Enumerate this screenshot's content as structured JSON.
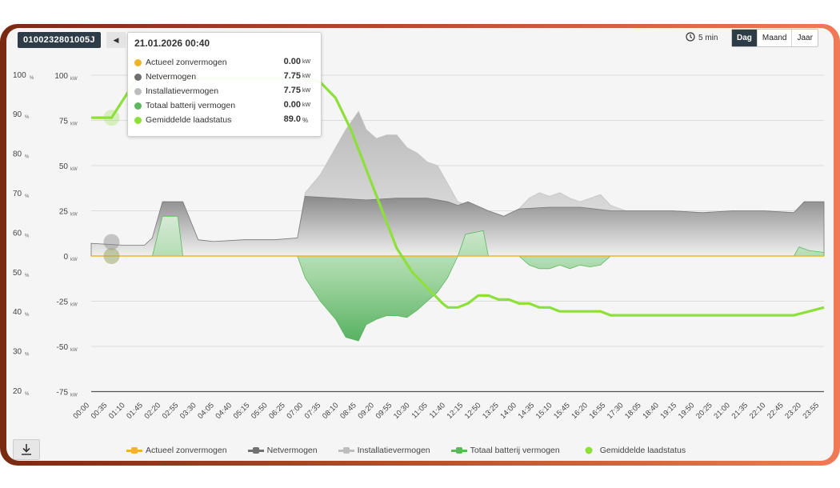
{
  "toolbar": {
    "meter_id": "0100232801005J",
    "interval_label": "5 min",
    "periods": [
      "Dag",
      "Maand",
      "Jaar"
    ],
    "active_period": "Dag"
  },
  "tooltip": {
    "title": "21.01.2026 00:40",
    "rows": [
      {
        "label": "Actueel zonvermogen",
        "value": "0.00",
        "unit": "kW",
        "color": "#f0b429"
      },
      {
        "label": "Netvermogen",
        "value": "7.75",
        "unit": "kW",
        "color": "#707070"
      },
      {
        "label": "Installatievermogen",
        "value": "7.75",
        "unit": "kW",
        "color": "#bdbdbd"
      },
      {
        "label": "Totaal batterij vermogen",
        "value": "0.00",
        "unit": "kW",
        "color": "#5cb85c"
      },
      {
        "label": "Gemiddelde laadstatus",
        "value": "89.0",
        "unit": "%",
        "color": "#8de03a"
      }
    ]
  },
  "legend": {
    "items": [
      {
        "label": "Actueel zonvermogen",
        "color": "#f0b429"
      },
      {
        "label": "Netvermogen",
        "color": "#707070"
      },
      {
        "label": "Installatievermogen",
        "color": "#bdbdbd"
      },
      {
        "label": "Totaal batterij vermogen",
        "color": "#5cb85c"
      },
      {
        "label": "Gemiddelde laadstatus",
        "color": "#8de03a"
      }
    ]
  },
  "chart_data": {
    "type": "area",
    "y_left": {
      "unit": "%",
      "ticks": [
        20,
        30,
        40,
        50,
        60,
        70,
        80,
        90,
        100
      ],
      "range": [
        20,
        100
      ]
    },
    "y_right": {
      "unit": "kW",
      "ticks": [
        -75,
        -50,
        -25,
        0,
        25,
        50,
        75,
        100
      ],
      "range": [
        -75,
        100
      ]
    },
    "x_labels": [
      "00:00",
      "00:35",
      "01:10",
      "01:45",
      "02:20",
      "02:55",
      "03:30",
      "04:05",
      "04:40",
      "05:15",
      "05:50",
      "06:25",
      "07:00",
      "07:35",
      "08:10",
      "08:45",
      "09:20",
      "09:55",
      "10:30",
      "11:05",
      "11:40",
      "12:15",
      "12:50",
      "13:25",
      "14:00",
      "14:35",
      "15:10",
      "15:45",
      "16:20",
      "16:55",
      "17:30",
      "18:05",
      "18:40",
      "19:15",
      "19:50",
      "20:25",
      "21:00",
      "21:35",
      "22:10",
      "22:45",
      "23:20",
      "23:55"
    ],
    "grid": true,
    "legend_position": "bottom",
    "series": [
      {
        "name": "Installatievermogen",
        "axis": "kW",
        "color": "#c8c8c8",
        "x": [
          "00:00",
          "01:00",
          "01:45",
          "02:00",
          "02:20",
          "03:00",
          "03:30",
          "04:00",
          "05:00",
          "06:00",
          "06:45",
          "07:00",
          "07:30",
          "08:00",
          "08:20",
          "08:45",
          "09:00",
          "09:20",
          "09:40",
          "10:00",
          "10:20",
          "10:40",
          "11:00",
          "11:20",
          "11:40",
          "12:00",
          "12:20",
          "13:00",
          "13:30",
          "14:00",
          "14:20",
          "14:40",
          "15:00",
          "15:20",
          "15:40",
          "16:00",
          "16:20",
          "16:40",
          "17:00",
          "17:30",
          "18:00",
          "19:00",
          "20:00",
          "21:00",
          "22:00",
          "23:00",
          "23:20",
          "23:59"
        ],
        "y": [
          7,
          6,
          6,
          10,
          30,
          30,
          9,
          8,
          9,
          9,
          10,
          35,
          45,
          60,
          70,
          80,
          70,
          65,
          67,
          67,
          60,
          57,
          52,
          50,
          40,
          30,
          28,
          25,
          22,
          26,
          32,
          35,
          33,
          35,
          32,
          30,
          32,
          34,
          28,
          25,
          25,
          25,
          24,
          25,
          25,
          24,
          30,
          30
        ]
      },
      {
        "name": "Netvermogen",
        "axis": "kW",
        "color": "#8a8a8a",
        "x": [
          "00:00",
          "01:00",
          "01:45",
          "02:00",
          "02:20",
          "03:00",
          "03:30",
          "04:00",
          "05:00",
          "06:00",
          "06:45",
          "07:00",
          "08:00",
          "09:00",
          "10:00",
          "11:00",
          "11:40",
          "12:00",
          "12:20",
          "13:00",
          "13:30",
          "14:00",
          "15:00",
          "16:00",
          "17:00",
          "18:00",
          "19:00",
          "20:00",
          "21:00",
          "22:00",
          "23:00",
          "23:20",
          "23:59"
        ],
        "y": [
          7,
          6,
          6,
          10,
          30,
          30,
          9,
          8,
          9,
          9,
          10,
          33,
          32,
          31,
          32,
          32,
          30,
          28,
          30,
          25,
          22,
          26,
          27,
          27,
          25,
          25,
          25,
          24,
          25,
          25,
          24,
          30,
          30
        ]
      },
      {
        "name": "Totaal batterij vermogen",
        "axis": "kW",
        "color": "#5cb85c",
        "x": [
          "00:00",
          "02:00",
          "02:20",
          "02:50",
          "03:00",
          "06:45",
          "07:00",
          "07:30",
          "08:00",
          "08:20",
          "08:45",
          "09:00",
          "09:20",
          "09:40",
          "10:00",
          "10:20",
          "10:40",
          "11:00",
          "11:20",
          "11:40",
          "12:00",
          "12:15",
          "12:50",
          "13:00",
          "13:30",
          "14:00",
          "14:20",
          "14:40",
          "15:00",
          "15:20",
          "15:40",
          "16:00",
          "16:20",
          "16:40",
          "17:00",
          "23:00",
          "23:10",
          "23:30",
          "23:59"
        ],
        "y": [
          0,
          0,
          22,
          22,
          0,
          0,
          -12,
          -25,
          -35,
          -45,
          -47,
          -38,
          -35,
          -33,
          -33,
          -34,
          -30,
          -25,
          -20,
          -12,
          0,
          12,
          14,
          0,
          0,
          0,
          -5,
          -7,
          -7,
          -5,
          -7,
          -5,
          -6,
          -5,
          0,
          0,
          5,
          3,
          2
        ]
      },
      {
        "name": "Actueel zonvermogen",
        "axis": "kW",
        "color": "#f0b429",
        "x": [
          "00:00",
          "06:45",
          "07:00",
          "12:00",
          "12:10",
          "23:59"
        ],
        "y": [
          0,
          0,
          0,
          0,
          0,
          0
        ]
      },
      {
        "name": "Gemiddelde laadstatus",
        "axis": "%",
        "color": "#8de03a",
        "x": [
          "00:00",
          "00:40",
          "01:30",
          "02:00",
          "04:00",
          "05:00",
          "06:00",
          "06:45",
          "07:00",
          "07:30",
          "08:00",
          "08:30",
          "09:00",
          "09:30",
          "10:00",
          "10:30",
          "11:00",
          "11:30",
          "11:40",
          "12:00",
          "12:20",
          "12:40",
          "13:00",
          "13:20",
          "13:40",
          "14:00",
          "14:20",
          "14:40",
          "15:00",
          "15:20",
          "15:40",
          "16:00",
          "16:20",
          "16:40",
          "17:00",
          "17:20",
          "18:00",
          "20:00",
          "22:00",
          "23:00",
          "23:30",
          "23:59"
        ],
        "y": [
          89,
          89,
          99,
          99,
          99,
          99,
          99,
          99,
          99,
          98,
          94,
          86,
          76,
          66,
          56,
          50,
          46,
          42,
          41,
          41,
          42,
          44,
          44,
          43,
          43,
          42,
          42,
          41,
          41,
          40,
          40,
          40,
          40,
          40,
          39,
          39,
          39,
          39,
          39,
          39,
          40,
          41
        ]
      }
    ]
  }
}
